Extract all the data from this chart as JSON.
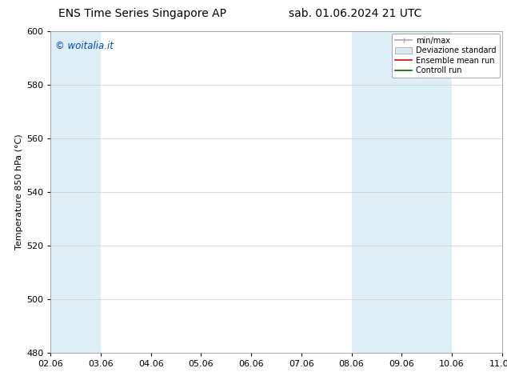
{
  "title_left": "ENS Time Series Singapore AP",
  "title_right": "sab. 01.06.2024 21 UTC",
  "ylabel": "Temperature 850 hPa (°C)",
  "ylim": [
    480,
    600
  ],
  "yticks": [
    480,
    500,
    520,
    540,
    560,
    580,
    600
  ],
  "xtick_labels": [
    "02.06",
    "03.06",
    "04.06",
    "05.06",
    "06.06",
    "07.06",
    "08.06",
    "09.06",
    "10.06",
    "11.06"
  ],
  "n_ticks": 10,
  "shade_color": "#ddeef7",
  "bg_color": "#ffffff",
  "grid_color": "#cccccc",
  "watermark_text": "© woitalia.it",
  "watermark_color": "#0044bb",
  "legend_entries": [
    "min/max",
    "Deviazione standard",
    "Ensemble mean run",
    "Controll run"
  ],
  "title_fontsize": 10,
  "axis_label_fontsize": 8,
  "tick_fontsize": 8,
  "legend_fontsize": 7
}
